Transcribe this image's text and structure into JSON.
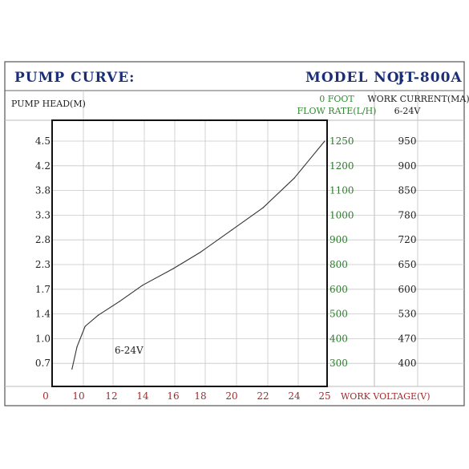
{
  "header": {
    "title": "PUMP CURVE:",
    "model_label": "MODEL NO:",
    "model_value": "JT-800A"
  },
  "colors": {
    "title": "#1a2f78",
    "flow": "#2f7a2f",
    "voltage": "#a52a2a",
    "grid": "#c8c8c8"
  },
  "chart_data": {
    "type": "line",
    "ylabel": "PUMP HEAD(M)",
    "flow_axis_title_1": "0 FOOT",
    "flow_axis_title_2": "FLOW RATE(L/H)",
    "current_axis_title_1": "WORK CURRENT(MA)",
    "current_axis_title_2": "6-24V",
    "xlabel": "WORK VOLTAGE(V)",
    "x_ticks": [
      "0",
      "10",
      "12",
      "14",
      "16",
      "18",
      "20",
      "22",
      "24",
      "25"
    ],
    "y_ticks": [
      "4.5",
      "4.2",
      "3.8",
      "3.3",
      "2.8",
      "2.3",
      "1.7",
      "1.4",
      "1.0",
      "0.7"
    ],
    "flow_ticks": [
      "1250",
      "1200",
      "1100",
      "1000",
      "900",
      "800",
      "600",
      "500",
      "400",
      "300"
    ],
    "current_ticks": [
      "950",
      "900",
      "850",
      "780",
      "720",
      "650",
      "600",
      "530",
      "470",
      "400"
    ],
    "grid": true,
    "series": [
      {
        "name": "6-24V",
        "points": [
          {
            "x": 9.6,
            "y": 0.63
          },
          {
            "x": 9.9,
            "y": 0.9
          },
          {
            "x": 10.4,
            "y": 1.2
          },
          {
            "x": 11.2,
            "y": 1.38
          },
          {
            "x": 12.5,
            "y": 1.55
          },
          {
            "x": 14.0,
            "y": 1.8
          },
          {
            "x": 16.0,
            "y": 2.2
          },
          {
            "x": 18.0,
            "y": 2.55
          },
          {
            "x": 20.0,
            "y": 3.0
          },
          {
            "x": 22.0,
            "y": 3.45
          },
          {
            "x": 24.0,
            "y": 4.0
          },
          {
            "x": 25.0,
            "y": 4.5
          }
        ]
      }
    ]
  }
}
